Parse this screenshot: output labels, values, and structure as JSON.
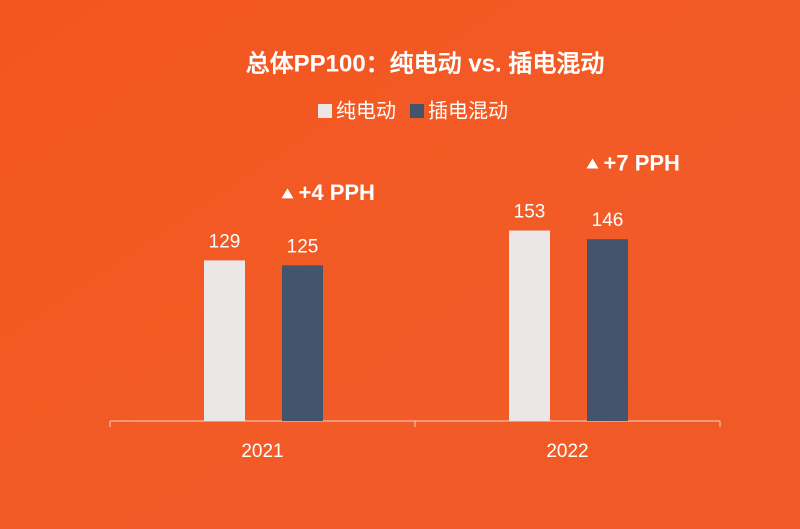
{
  "chart_data": {
    "type": "bar",
    "title": "总体PP100：纯电动 vs. 插电混动",
    "categories": [
      "2021",
      "2022"
    ],
    "series": [
      {
        "name": "纯电动",
        "color": "#ebe7e6",
        "values": [
          129,
          153
        ]
      },
      {
        "name": "插电混动",
        "color": "#44546a",
        "values": [
          125,
          146
        ]
      }
    ],
    "annotations": [
      "+4 PPH",
      "+7 PPH"
    ],
    "ylim": [
      0,
      200
    ]
  }
}
